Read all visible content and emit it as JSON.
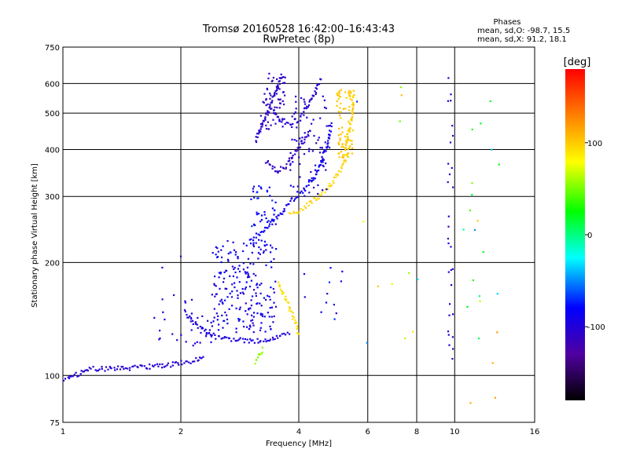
{
  "chart_data": {
    "type": "scatter",
    "title": "Tromsø 20160528 16:42:00–16:43:43",
    "subtitle": "RwPretec (8p)",
    "xlabel": "Frequency [MHz]",
    "ylabel": "Stationary phase Virtual Height [km]",
    "x_scale": "log",
    "y_scale": "log",
    "xlim": [
      1,
      16
    ],
    "ylim": [
      75,
      750
    ],
    "x_ticks": [
      {
        "value": 1,
        "label": "1"
      },
      {
        "value": 2,
        "label": "2"
      },
      {
        "value": 4,
        "label": "4"
      },
      {
        "value": 6,
        "label": "6"
      },
      {
        "value": 8,
        "label": "8"
      },
      {
        "value": 10,
        "label": "10"
      },
      {
        "value": 16,
        "label": "16"
      }
    ],
    "y_ticks": [
      {
        "value": 75,
        "label": "75"
      },
      {
        "value": 100,
        "label": "100"
      },
      {
        "value": 200,
        "label": "200"
      },
      {
        "value": 300,
        "label": "300"
      },
      {
        "value": 400,
        "label": "400"
      },
      {
        "value": 500,
        "label": "500"
      },
      {
        "value": 600,
        "label": "600"
      },
      {
        "value": 750,
        "label": "750"
      }
    ],
    "grid": true,
    "stats": {
      "header": "Phases",
      "line_o": "mean, sd,O: -98.7, 15.5",
      "line_x": "mean, sd,X:  91.2, 18.1"
    },
    "colorbar": {
      "label": "[deg]",
      "ticks": [
        {
          "value": 100,
          "label": "100"
        },
        {
          "value": 0,
          "label": "0"
        },
        {
          "value": -100,
          "label": "-100"
        }
      ],
      "range": [
        -180,
        180
      ],
      "colors": [
        "#000000",
        "#5000a0",
        "#0000ff",
        "#00ffff",
        "#00ff00",
        "#ffff00",
        "#ff8000",
        "#ff0000"
      ]
    },
    "traces": [
      {
        "type": "line",
        "phase": -100,
        "points": [
          [
            1.0,
            98
          ],
          [
            1.1,
            101
          ],
          [
            1.15,
            104
          ],
          [
            1.3,
            104
          ],
          [
            1.5,
            105
          ],
          [
            1.8,
            106
          ],
          [
            2.0,
            108
          ],
          [
            2.2,
            110
          ],
          [
            2.3,
            113
          ]
        ]
      },
      {
        "type": "line",
        "phase": -95,
        "points": [
          [
            2.05,
            146
          ],
          [
            2.2,
            135
          ],
          [
            2.4,
            128
          ],
          [
            2.6,
            125
          ],
          [
            2.9,
            124
          ],
          [
            3.3,
            124
          ],
          [
            3.6,
            127
          ],
          [
            3.8,
            129
          ]
        ]
      },
      {
        "type": "line",
        "phase": -85,
        "points": [
          [
            3.0,
            230
          ],
          [
            3.2,
            240
          ],
          [
            3.4,
            255
          ],
          [
            3.6,
            270
          ],
          [
            3.8,
            290
          ],
          [
            4.1,
            310
          ],
          [
            4.4,
            340
          ],
          [
            4.6,
            380
          ],
          [
            4.75,
            420
          ],
          [
            4.85,
            470
          ]
        ]
      },
      {
        "type": "line",
        "phase": -105,
        "points": [
          [
            3.1,
            420
          ],
          [
            3.2,
            460
          ],
          [
            3.35,
            510
          ],
          [
            3.45,
            550
          ],
          [
            3.55,
            600
          ],
          [
            3.65,
            640
          ]
        ]
      },
      {
        "type": "line",
        "phase": -100,
        "points": [
          [
            3.4,
            520
          ],
          [
            3.6,
            480
          ],
          [
            3.8,
            470
          ],
          [
            4.0,
            480
          ],
          [
            4.2,
            520
          ],
          [
            4.4,
            570
          ],
          [
            4.55,
            620
          ]
        ]
      },
      {
        "type": "line",
        "phase": -110,
        "points": [
          [
            3.3,
            370
          ],
          [
            3.5,
            350
          ],
          [
            3.7,
            360
          ],
          [
            3.9,
            390
          ],
          [
            4.1,
            420
          ],
          [
            4.3,
            450
          ]
        ]
      },
      {
        "type": "line",
        "phase": 95,
        "points": [
          [
            3.8,
            270
          ],
          [
            4.0,
            275
          ],
          [
            4.2,
            285
          ],
          [
            4.5,
            300
          ],
          [
            4.8,
            320
          ],
          [
            5.1,
            350
          ],
          [
            5.3,
            380
          ],
          [
            5.4,
            410
          ]
        ]
      },
      {
        "type": "line",
        "phase": 98,
        "points": [
          [
            5.2,
            380
          ],
          [
            5.3,
            420
          ],
          [
            5.4,
            460
          ],
          [
            5.5,
            520
          ],
          [
            5.55,
            580
          ]
        ]
      },
      {
        "type": "line",
        "phase": 92,
        "points": [
          [
            3.55,
            175
          ],
          [
            3.65,
            165
          ],
          [
            3.75,
            155
          ],
          [
            3.85,
            145
          ],
          [
            3.95,
            135
          ],
          [
            4.0,
            128
          ]
        ]
      },
      {
        "type": "line",
        "phase": 55,
        "points": [
          [
            3.1,
            108
          ],
          [
            3.15,
            112
          ],
          [
            3.25,
            118
          ]
        ]
      }
    ],
    "clusters": [
      {
        "x": [
          2.4,
          3.5
        ],
        "y": [
          130,
          230
        ],
        "count": 220,
        "phase": -90,
        "spread": 18
      },
      {
        "x": [
          3.0,
          3.5
        ],
        "y": [
          250,
          320
        ],
        "count": 40,
        "phase": -80,
        "spread": 15
      },
      {
        "x": [
          2.0,
          2.4
        ],
        "y": [
          120,
          160
        ],
        "count": 25,
        "phase": -100,
        "spread": 10
      },
      {
        "x": [
          1.7,
          2.0
        ],
        "y": [
          120,
          210
        ],
        "count": 12,
        "phase": -100,
        "spread": 10
      },
      {
        "x": [
          3.8,
          4.8
        ],
        "y": [
          300,
          560
        ],
        "count": 80,
        "phase": -100,
        "spread": 10
      },
      {
        "x": [
          3.2,
          3.7
        ],
        "y": [
          450,
          640
        ],
        "count": 60,
        "phase": -110,
        "spread": 8
      },
      {
        "x": [
          5.0,
          5.5
        ],
        "y": [
          380,
          580
        ],
        "count": 70,
        "phase": 100,
        "spread": 6
      },
      {
        "x": [
          4.1,
          5.2
        ],
        "y": [
          140,
          200
        ],
        "count": 12,
        "phase": -85,
        "spread": 20
      },
      {
        "x": [
          9.6,
          9.9
        ],
        "y": [
          97,
          640
        ],
        "count": 30,
        "phase": -105,
        "spread": 10
      },
      {
        "x": [
          10.5,
          13.0
        ],
        "y": [
          80,
          560
        ],
        "count": 22,
        "phase": 40,
        "spread": 90
      },
      {
        "x": [
          5.5,
          8.5
        ],
        "y": [
          110,
          650
        ],
        "count": 12,
        "phase": 20,
        "spread": 90
      }
    ]
  }
}
